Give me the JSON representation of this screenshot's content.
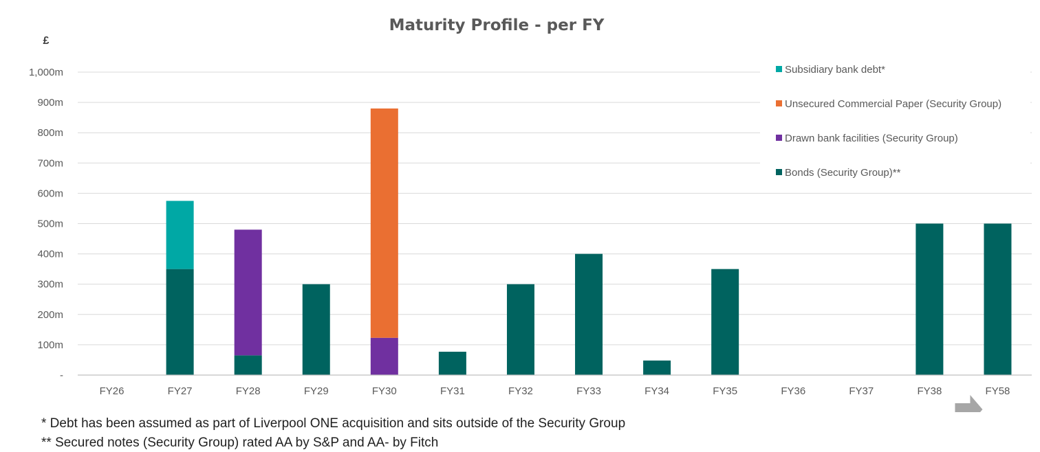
{
  "chart_data": {
    "type": "bar",
    "stacked": true,
    "title": "Maturity Profile - per FY",
    "ylabel": "£",
    "xlabel": "",
    "ylim": [
      0,
      1000
    ],
    "yticks": [
      {
        "value": 0,
        "label": "-"
      },
      {
        "value": 100,
        "label": "100m"
      },
      {
        "value": 200,
        "label": "200m"
      },
      {
        "value": 300,
        "label": "300m"
      },
      {
        "value": 400,
        "label": "400m"
      },
      {
        "value": 500,
        "label": "500m"
      },
      {
        "value": 600,
        "label": "600m"
      },
      {
        "value": 700,
        "label": "700m"
      },
      {
        "value": 800,
        "label": "800m"
      },
      {
        "value": 900,
        "label": "900m"
      },
      {
        "value": 1000,
        "label": "1,000m"
      }
    ],
    "categories": [
      "FY26",
      "FY27",
      "FY28",
      "FY29",
      "FY30",
      "FY31",
      "FY32",
      "FY33",
      "FY34",
      "FY35",
      "FY36",
      "FY37",
      "FY38",
      "FY58"
    ],
    "series": [
      {
        "name": "Bonds (Security Group)**",
        "color": "#00635f",
        "values": [
          0,
          350,
          65,
          300,
          0,
          77,
          300,
          400,
          48,
          350,
          0,
          0,
          500,
          500
        ]
      },
      {
        "name": "Drawn bank facilities (Security Group)",
        "color": "#7030a0",
        "values": [
          0,
          0,
          415,
          0,
          123,
          0,
          0,
          0,
          0,
          0,
          0,
          0,
          0,
          0
        ]
      },
      {
        "name": "Unsecured Commercial Paper (Security Group)",
        "color": "#ea6f32",
        "values": [
          0,
          0,
          0,
          0,
          757,
          0,
          0,
          0,
          0,
          0,
          0,
          0,
          0,
          0
        ]
      },
      {
        "name": "Subsidiary bank debt*",
        "color": "#00a8a5",
        "values": [
          0,
          225,
          0,
          0,
          0,
          0,
          0,
          0,
          0,
          0,
          0,
          0,
          0,
          0
        ]
      }
    ],
    "legend_order": [
      3,
      2,
      1,
      0
    ],
    "legend_position": "top-right",
    "grid": true,
    "arrow_annotation": {
      "category": "FY58",
      "color": "#a6a6a6"
    }
  },
  "footnotes": [
    "* Debt has been assumed as part of Liverpool ONE acquisition and sits outside of the Security Group",
    "** Secured notes (Security Group) rated AA by S&P and AA- by Fitch"
  ]
}
